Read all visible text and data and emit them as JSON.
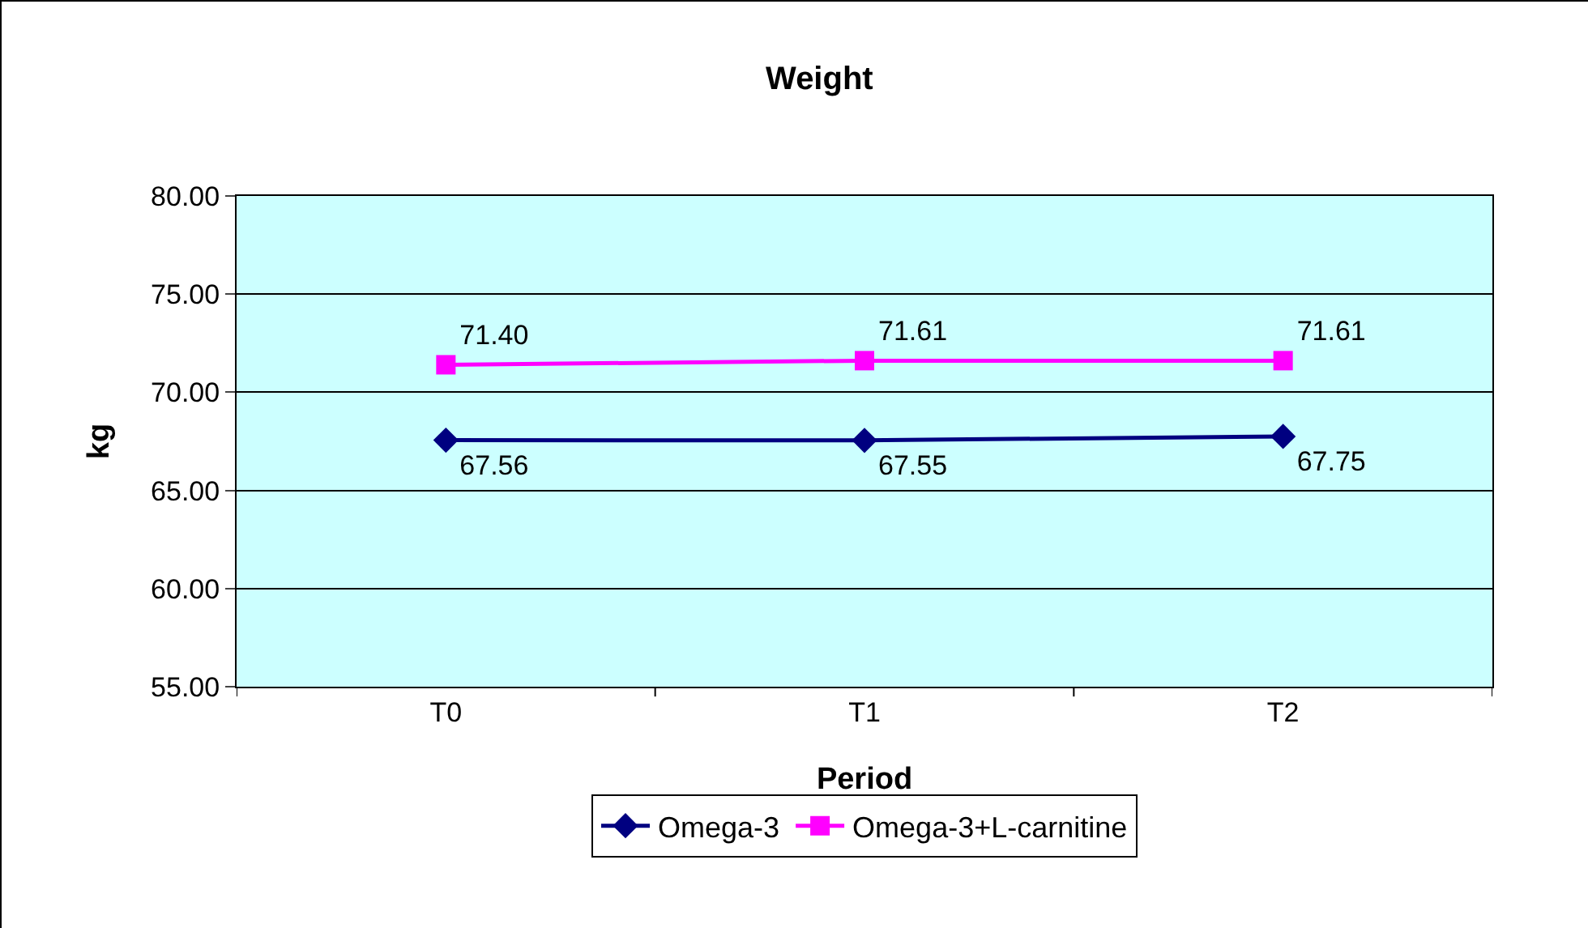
{
  "chart_data": {
    "type": "line",
    "title": "Weight",
    "xlabel": "Period",
    "ylabel": "kg",
    "categories": [
      "T0",
      "T1",
      "T2"
    ],
    "series": [
      {
        "name": "Omega-3",
        "color": "#000080",
        "marker": "diamond",
        "values": [
          67.56,
          67.55,
          67.75
        ],
        "value_labels": [
          "67.56",
          "67.55",
          "67.75"
        ]
      },
      {
        "name": "Omega-3+L-carnitine",
        "color": "#ff00ff",
        "marker": "square",
        "values": [
          71.4,
          71.61,
          71.61
        ],
        "value_labels": [
          "71.40",
          "71.61",
          "71.61"
        ]
      }
    ],
    "ylim": [
      55,
      80
    ],
    "yticks": [
      {
        "value": 55,
        "label": "55.00"
      },
      {
        "value": 60,
        "label": "60.00"
      },
      {
        "value": 65,
        "label": "65.00"
      },
      {
        "value": 70,
        "label": "70.00"
      },
      {
        "value": 75,
        "label": "75.00"
      },
      {
        "value": 80,
        "label": "80.00"
      }
    ],
    "grid": "y",
    "legend": "bottom",
    "line_style": "solid"
  }
}
